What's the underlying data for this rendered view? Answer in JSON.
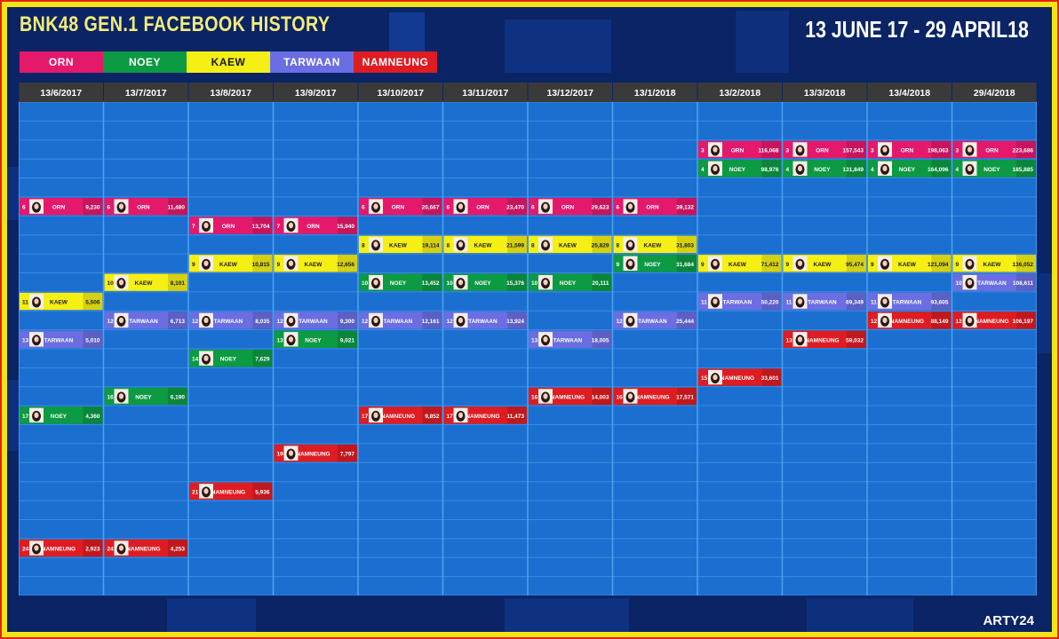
{
  "header": {
    "title": "BNK48 GEN.1 FACEBOOK HISTORY",
    "date_range": "13 JUNE 17 - 29 APRIL18",
    "credit": "ARTY24"
  },
  "colors": {
    "ORN": "#e4196b",
    "NOEY": "#0c9a43",
    "KAEW": "#f5ef14",
    "TARWAAN": "#6a6ee2",
    "NAMNEUNG": "#de1c22"
  },
  "chart_data": {
    "type": "table",
    "title": "BNK48 GEN.1 FACEBOOK HISTORY",
    "subtitle": "13 JUNE 17 - 29 APRIL18",
    "legend": [
      "ORN",
      "NOEY",
      "KAEW",
      "TARWAAN",
      "NAMNEUNG"
    ],
    "legend_position": "top-left",
    "columns": [
      "13/6/2017",
      "13/7/2017",
      "13/8/2017",
      "13/9/2017",
      "13/10/2017",
      "13/11/2017",
      "13/12/2017",
      "13/1/2018",
      "13/2/2018",
      "13/3/2018",
      "13/4/2018",
      "29/4/2018"
    ],
    "rank_range": [
      1,
      26
    ],
    "series": [
      {
        "name": "ORN",
        "ranks": [
          6,
          6,
          7,
          7,
          6,
          6,
          6,
          6,
          3,
          3,
          3,
          3
        ],
        "values": [
          "9,230",
          "11,480",
          "13,704",
          "15,940",
          "20,667",
          "23,470",
          "29,623",
          "39,132",
          "116,068",
          "157,543",
          "198,063",
          "223,686"
        ]
      },
      {
        "name": "NOEY",
        "ranks": [
          17,
          16,
          14,
          13,
          10,
          10,
          10,
          9,
          4,
          4,
          4,
          4
        ],
        "values": [
          "4,360",
          "6,190",
          "7,629",
          "9,021",
          "13,452",
          "15,376",
          "20,111",
          "31,684",
          "98,976",
          "131,849",
          "164,096",
          "185,885"
        ]
      },
      {
        "name": "KAEW",
        "ranks": [
          11,
          10,
          9,
          9,
          8,
          8,
          8,
          8,
          9,
          9,
          9,
          9
        ],
        "values": [
          "5,506",
          "8,101",
          "10,815",
          "12,656",
          "19,114",
          "21,599",
          "25,829",
          "31,803",
          "71,412",
          "95,474",
          "121,094",
          "136,052"
        ]
      },
      {
        "name": "TARWAAN",
        "ranks": [
          13,
          12,
          12,
          12,
          12,
          12,
          13,
          12,
          11,
          11,
          11,
          10
        ],
        "values": [
          "5,010",
          "6,713",
          "8,035",
          "9,300",
          "12,161",
          "13,924",
          "18,005",
          "25,444",
          "50,220",
          "69,349",
          "93,605",
          "108,611"
        ]
      },
      {
        "name": "NAMNEUNG",
        "ranks": [
          24,
          24,
          21,
          19,
          17,
          17,
          16,
          16,
          15,
          13,
          12,
          12
        ],
        "values": [
          "2,923",
          "4,253",
          "5,936",
          "7,797",
          "9,852",
          "11,473",
          "14,003",
          "17,571",
          "33,601",
          "59,032",
          "88,149",
          "106,197"
        ]
      }
    ]
  }
}
